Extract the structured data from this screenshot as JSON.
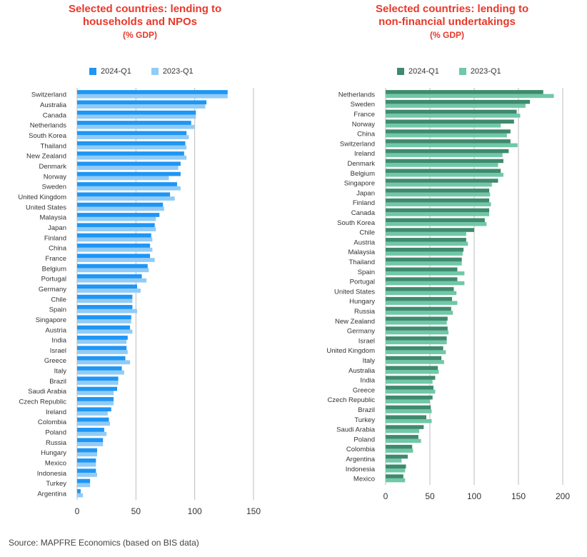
{
  "colors": {
    "left_2024": "#1e96f5",
    "left_2023": "#92cbf6",
    "right_2024": "#3f8a6e",
    "right_2023": "#70c8a6",
    "title": "#e8382b",
    "grid": "#bdbdbd"
  },
  "source": "Source: MAPFRE Economics (based on BIS data)",
  "chart_data": [
    {
      "type": "bar",
      "orientation": "horizontal",
      "title": [
        "Selected countries: lending to",
        "households and NPOs",
        "(% GDP)"
      ],
      "xlim": [
        0,
        150
      ],
      "xticks": [
        0,
        50,
        100,
        150
      ],
      "grid": true,
      "legend_position": "top",
      "categories": [
        "Switzerland",
        "Australia",
        "Canada",
        "Netherlands",
        "South Korea",
        "Thailand",
        "New Zealand",
        "Denmark",
        "Norway",
        "Sweden",
        "United Kingdom",
        "United States",
        "Malaysia",
        "Japan",
        "Finland",
        "China",
        "France",
        "Belgium",
        "Portugal",
        "Germany",
        "Chile",
        "Spain",
        "Singapore",
        "Austria",
        "India",
        "Israel",
        "Greece",
        "Italy",
        "Brazil",
        "Saudi Arabia",
        "Czech Republic",
        "Ireland",
        "Colombia",
        "Poland",
        "Russia",
        "Hungary",
        "Mexico",
        "Indonesia",
        "Turkey",
        "Argentina"
      ],
      "series": [
        {
          "name": "2024-Q1",
          "values": [
            128,
            110,
            101,
            97,
            93,
            92,
            91,
            88,
            88,
            85,
            79,
            73,
            70,
            66,
            63,
            62,
            62,
            60,
            55,
            51,
            47,
            47,
            46,
            45,
            43,
            42,
            41,
            38,
            35,
            34,
            31,
            29,
            27,
            23,
            22,
            17,
            16,
            16,
            11,
            3
          ]
        },
        {
          "name": "2023-Q1",
          "values": [
            128,
            109,
            101,
            100,
            95,
            93,
            93,
            86,
            78,
            88,
            83,
            74,
            67,
            67,
            64,
            64,
            66,
            61,
            59,
            54,
            47,
            51,
            46,
            47,
            42,
            43,
            45,
            40,
            35,
            31,
            31,
            26,
            28,
            25,
            22,
            17,
            16,
            17,
            11,
            5
          ]
        }
      ]
    },
    {
      "type": "bar",
      "orientation": "horizontal",
      "title": [
        "Selected countries: lending to",
        "non-financial undertakings",
        "(% GDP)"
      ],
      "xlim": [
        0,
        200
      ],
      "xticks": [
        0,
        50,
        100,
        150,
        200
      ],
      "grid": true,
      "legend_position": "top",
      "categories": [
        "Netherlands",
        "Sweden",
        "France",
        "Norway",
        "China",
        "Switzerland",
        "Ireland",
        "Denmark",
        "Belgium",
        "Singapore",
        "Japan",
        "Finland",
        "Canada",
        "South Korea",
        "Chile",
        "Austria",
        "Malaysia",
        "Thailand",
        "Spain",
        "Portugal",
        "United States",
        "Hungary",
        "Russia",
        "New Zealand",
        "Germany",
        "Israel",
        "United Kingdom",
        "Italy",
        "Australia",
        "India",
        "Greece",
        "Czech Republic",
        "Brazil",
        "Turkey",
        "Saudi Arabia",
        "Poland",
        "Colombia",
        "Argentina",
        "Indonesia",
        "Mexico"
      ],
      "series": [
        {
          "name": "2024-Q1",
          "values": [
            178,
            163,
            148,
            145,
            141,
            141,
            139,
            133,
            130,
            127,
            117,
            117,
            117,
            112,
            100,
            91,
            88,
            86,
            81,
            81,
            77,
            75,
            74,
            70,
            70,
            69,
            65,
            63,
            59,
            56,
            54,
            53,
            51,
            46,
            43,
            37,
            30,
            25,
            23,
            20
          ]
        },
        {
          "name": "2023-Q1",
          "values": [
            190,
            158,
            152,
            130,
            137,
            149,
            132,
            127,
            133,
            120,
            118,
            119,
            117,
            114,
            91,
            93,
            87,
            86,
            89,
            89,
            80,
            81,
            76,
            69,
            71,
            69,
            68,
            66,
            60,
            53,
            56,
            50,
            52,
            52,
            38,
            40,
            31,
            18,
            22,
            22
          ]
        }
      ]
    }
  ]
}
